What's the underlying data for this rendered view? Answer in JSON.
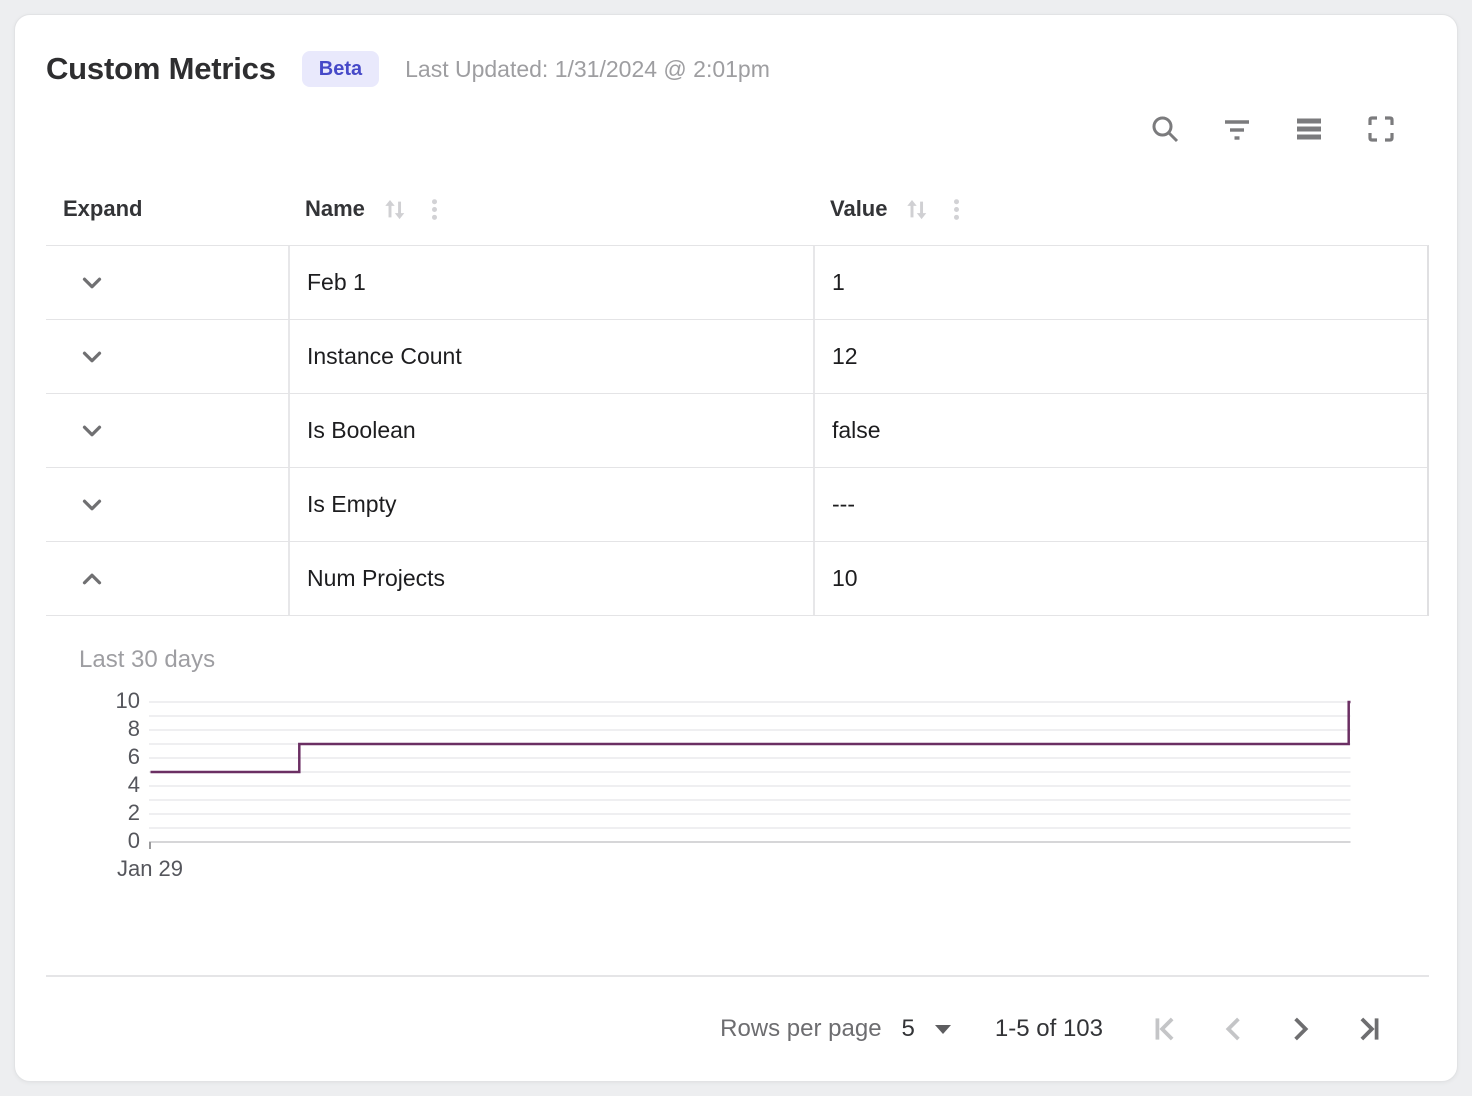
{
  "header": {
    "title": "Custom Metrics",
    "badge": "Beta",
    "last_updated": "Last Updated: 1/31/2024 @ 2:01pm"
  },
  "toolbar": {
    "icons": [
      "search-icon",
      "filter-icon",
      "density-icon",
      "fullscreen-icon"
    ]
  },
  "table": {
    "columns": {
      "expand": "Expand",
      "name": "Name",
      "value": "Value"
    },
    "rows": [
      {
        "name": "Feb 1",
        "value": "1",
        "expanded": false
      },
      {
        "name": "Instance Count",
        "value": "12",
        "expanded": false
      },
      {
        "name": "Is Boolean",
        "value": "false",
        "expanded": false
      },
      {
        "name": "Is Empty",
        "value": "---",
        "expanded": false
      },
      {
        "name": "Num Projects",
        "value": "10",
        "expanded": true
      }
    ]
  },
  "chart_data": {
    "type": "line",
    "subtype": "step",
    "title": "Last 30 days",
    "series": [
      {
        "name": "Num Projects",
        "points": [
          {
            "x": 0,
            "y": 5
          },
          {
            "x": 0.124,
            "y": 5
          },
          {
            "x": 0.124,
            "y": 7
          },
          {
            "x": 0.9985,
            "y": 7
          },
          {
            "x": 0.9985,
            "y": 10
          },
          {
            "x": 1,
            "y": 10
          }
        ]
      }
    ],
    "y_ticks": [
      0,
      2,
      4,
      6,
      8,
      10
    ],
    "ylim": [
      0,
      10
    ],
    "x_tick_labels": [
      "Jan 29"
    ],
    "grid": true,
    "legend": "none",
    "line_color": "#6B2F63"
  },
  "footer": {
    "rows_per_page_label": "Rows per page",
    "rows_per_page_value": "5",
    "range_label": "1-5 of 103",
    "pagination": {
      "first_disabled": true,
      "prev_disabled": true,
      "next_disabled": false,
      "last_disabled": false
    }
  },
  "colors": {
    "accent_line": "#6B2F63",
    "badge_bg": "#e9e9fc",
    "badge_text": "#4649c8",
    "grid_line": "#efeff1",
    "grid_base_line": "#d6d6d8"
  }
}
